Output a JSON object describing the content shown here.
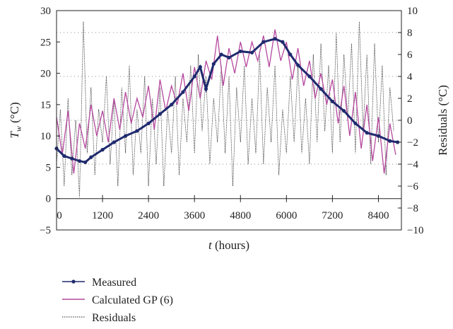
{
  "chart_data": {
    "type": "line",
    "title": "",
    "xlabel": "t (hours)",
    "ylabel_left": "T_w (°C)",
    "ylabel_right": "Residuals (°C)",
    "xlim": [
      0,
      9000
    ],
    "ylim_left": [
      -5,
      30
    ],
    "ylim_right": [
      -10,
      10
    ],
    "x_ticks": [
      0,
      1200,
      2400,
      3600,
      4800,
      6000,
      7200,
      8400
    ],
    "y_ticks_left": [
      -5,
      0,
      5,
      10,
      15,
      20,
      25,
      30
    ],
    "y_ticks_right": [
      -10,
      -8,
      -6,
      -4,
      -2,
      0,
      2,
      4,
      6,
      8,
      10
    ],
    "grid": "dotted horizontal lines at residual values -4, 0, 4, 8",
    "legend_position": "bottom-left, below chart",
    "colors": {
      "measured": "#1f2a6e",
      "calculated": "#b5489e",
      "residuals": "#222222"
    },
    "series": [
      {
        "name": "Measured",
        "axis": "left",
        "x": [
          0,
          200,
          400,
          600,
          750,
          900,
          1200,
          1500,
          1800,
          2100,
          2400,
          2700,
          3000,
          3300,
          3600,
          3750,
          3900,
          4100,
          4300,
          4500,
          4800,
          5100,
          5400,
          5700,
          5900,
          6100,
          6300,
          6600,
          6900,
          7200,
          7500,
          7800,
          8100,
          8400,
          8700,
          8900
        ],
        "y": [
          8,
          6.8,
          6.4,
          6,
          5.8,
          6.6,
          7.8,
          9,
          10,
          10.8,
          12,
          13.5,
          15,
          17,
          19.5,
          21,
          17.5,
          21.5,
          23,
          22.5,
          23.5,
          23.3,
          25,
          25.5,
          25,
          23,
          21.3,
          19.5,
          17.5,
          15.5,
          14,
          12,
          10.5,
          10,
          9.2,
          9
        ]
      },
      {
        "name": "Calculated GP (6)",
        "axis": "left",
        "x": [
          0,
          150,
          300,
          450,
          600,
          750,
          900,
          1050,
          1200,
          1350,
          1500,
          1650,
          1800,
          1950,
          2100,
          2250,
          2400,
          2550,
          2700,
          2850,
          3000,
          3150,
          3300,
          3450,
          3600,
          3750,
          3900,
          4050,
          4200,
          4350,
          4500,
          4650,
          4800,
          4950,
          5100,
          5250,
          5400,
          5550,
          5700,
          5850,
          6000,
          6150,
          6300,
          6450,
          6600,
          6750,
          6900,
          7050,
          7200,
          7350,
          7500,
          7650,
          7800,
          7950,
          8100,
          8250,
          8400,
          8550,
          8700,
          8850
        ],
        "y": [
          13,
          7,
          14,
          4,
          12,
          8,
          15,
          10,
          14,
          9,
          16,
          11,
          17,
          12,
          16,
          13,
          18,
          11,
          19,
          14,
          18,
          15,
          20,
          14,
          21,
          16,
          22,
          19,
          26,
          18,
          24,
          20,
          25,
          21,
          25,
          22,
          26,
          21,
          27,
          22,
          25,
          19,
          24,
          18,
          22,
          16,
          20,
          15,
          19,
          12,
          18,
          10,
          17,
          8,
          15,
          6,
          13,
          4,
          12,
          7
        ]
      },
      {
        "name": "Residuals",
        "axis": "right",
        "x": [
          0,
          100,
          200,
          300,
          400,
          500,
          600,
          700,
          800,
          900,
          1000,
          1100,
          1200,
          1300,
          1400,
          1500,
          1600,
          1700,
          1800,
          1900,
          2000,
          2100,
          2200,
          2300,
          2400,
          2500,
          2600,
          2700,
          2800,
          2900,
          3000,
          3100,
          3200,
          3300,
          3400,
          3500,
          3600,
          3700,
          3800,
          3900,
          4000,
          4100,
          4200,
          4300,
          4400,
          4500,
          4600,
          4700,
          4800,
          4900,
          5000,
          5100,
          5200,
          5300,
          5400,
          5500,
          5600,
          5700,
          5800,
          5900,
          6000,
          6100,
          6200,
          6300,
          6400,
          6500,
          6600,
          6700,
          6800,
          6900,
          7000,
          7100,
          7200,
          7300,
          7400,
          7500,
          7600,
          7700,
          7800,
          7900,
          8000,
          8100,
          8200,
          8300,
          8400,
          8500,
          8600,
          8700,
          8800
        ],
        "y": [
          -4,
          1,
          -6,
          2,
          -5,
          0,
          -7,
          9,
          -3,
          3,
          -5,
          1,
          -2,
          4,
          -4,
          2,
          -6,
          3,
          -3,
          5,
          -5,
          1,
          -3,
          4,
          -6,
          2,
          -4,
          3,
          -6,
          1,
          -3,
          4,
          -5,
          2,
          -2,
          5,
          -3,
          6,
          -1,
          4,
          -4,
          2,
          -2,
          5,
          -3,
          4,
          -6,
          3,
          -2,
          5,
          -4,
          2,
          -3,
          6,
          -4,
          3,
          -2,
          5,
          -5,
          1,
          -3,
          4,
          -2,
          5,
          -3,
          2,
          -4,
          6,
          -2,
          7,
          -1,
          5,
          -3,
          8,
          -2,
          6,
          0,
          7,
          -3,
          9,
          -1,
          6,
          -4,
          7,
          -2,
          5,
          -5,
          3,
          -1
        ]
      }
    ]
  },
  "legend": {
    "items": [
      "Measured",
      "Calculated GP (6)",
      "Residuals"
    ]
  }
}
